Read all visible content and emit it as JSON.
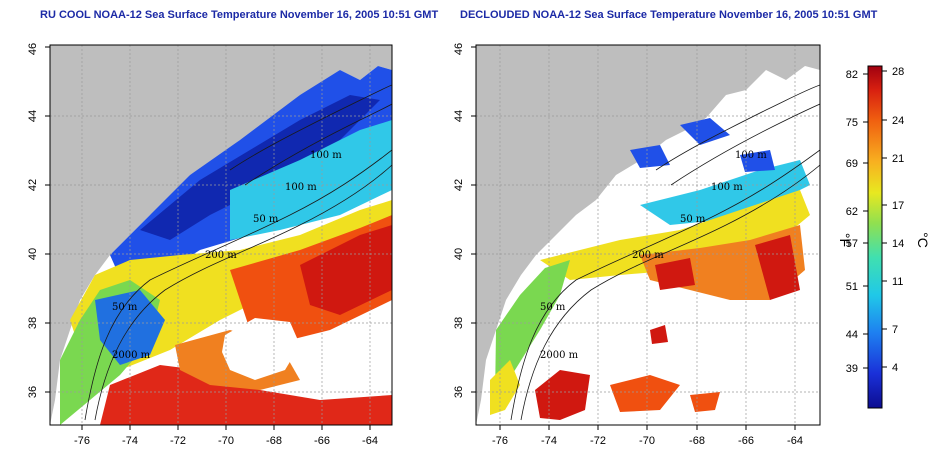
{
  "titles": {
    "left": "RU COOL NOAA-12 Sea Surface Temperature November 16, 2005 10:51 GMT",
    "right": "DECLOUDED NOAA-12 Sea Surface Temperature November 16, 2005 10:51 GMT"
  },
  "axes": {
    "lon_ticks": [
      "-76",
      "-74",
      "-72",
      "-70",
      "-68",
      "-66",
      "-64"
    ],
    "lat_ticks": [
      "36",
      "38",
      "40",
      "42",
      "44",
      "46"
    ]
  },
  "contour_labels": [
    "100 m",
    "100 m",
    "50 m",
    "200 m",
    "50 m",
    "2000 m"
  ],
  "colorbar": {
    "fahrenheit_ticks": [
      "82",
      "75",
      "69",
      "62",
      "57",
      "51",
      "44",
      "39"
    ],
    "celsius_ticks": [
      "28",
      "24",
      "21",
      "17",
      "14",
      "11",
      "7",
      "4"
    ],
    "fahrenheit_unit": "°F",
    "celsius_unit": "°C",
    "colors": [
      "#1010a0",
      "#1e40e0",
      "#2090f0",
      "#20d0e0",
      "#40e0a0",
      "#a0e040",
      "#f0e020",
      "#f8a020",
      "#f05010",
      "#c00010"
    ]
  },
  "map_colors": {
    "land": "#bebebe",
    "cloud": "#ffffff",
    "grid": "#9a9a9a"
  }
}
